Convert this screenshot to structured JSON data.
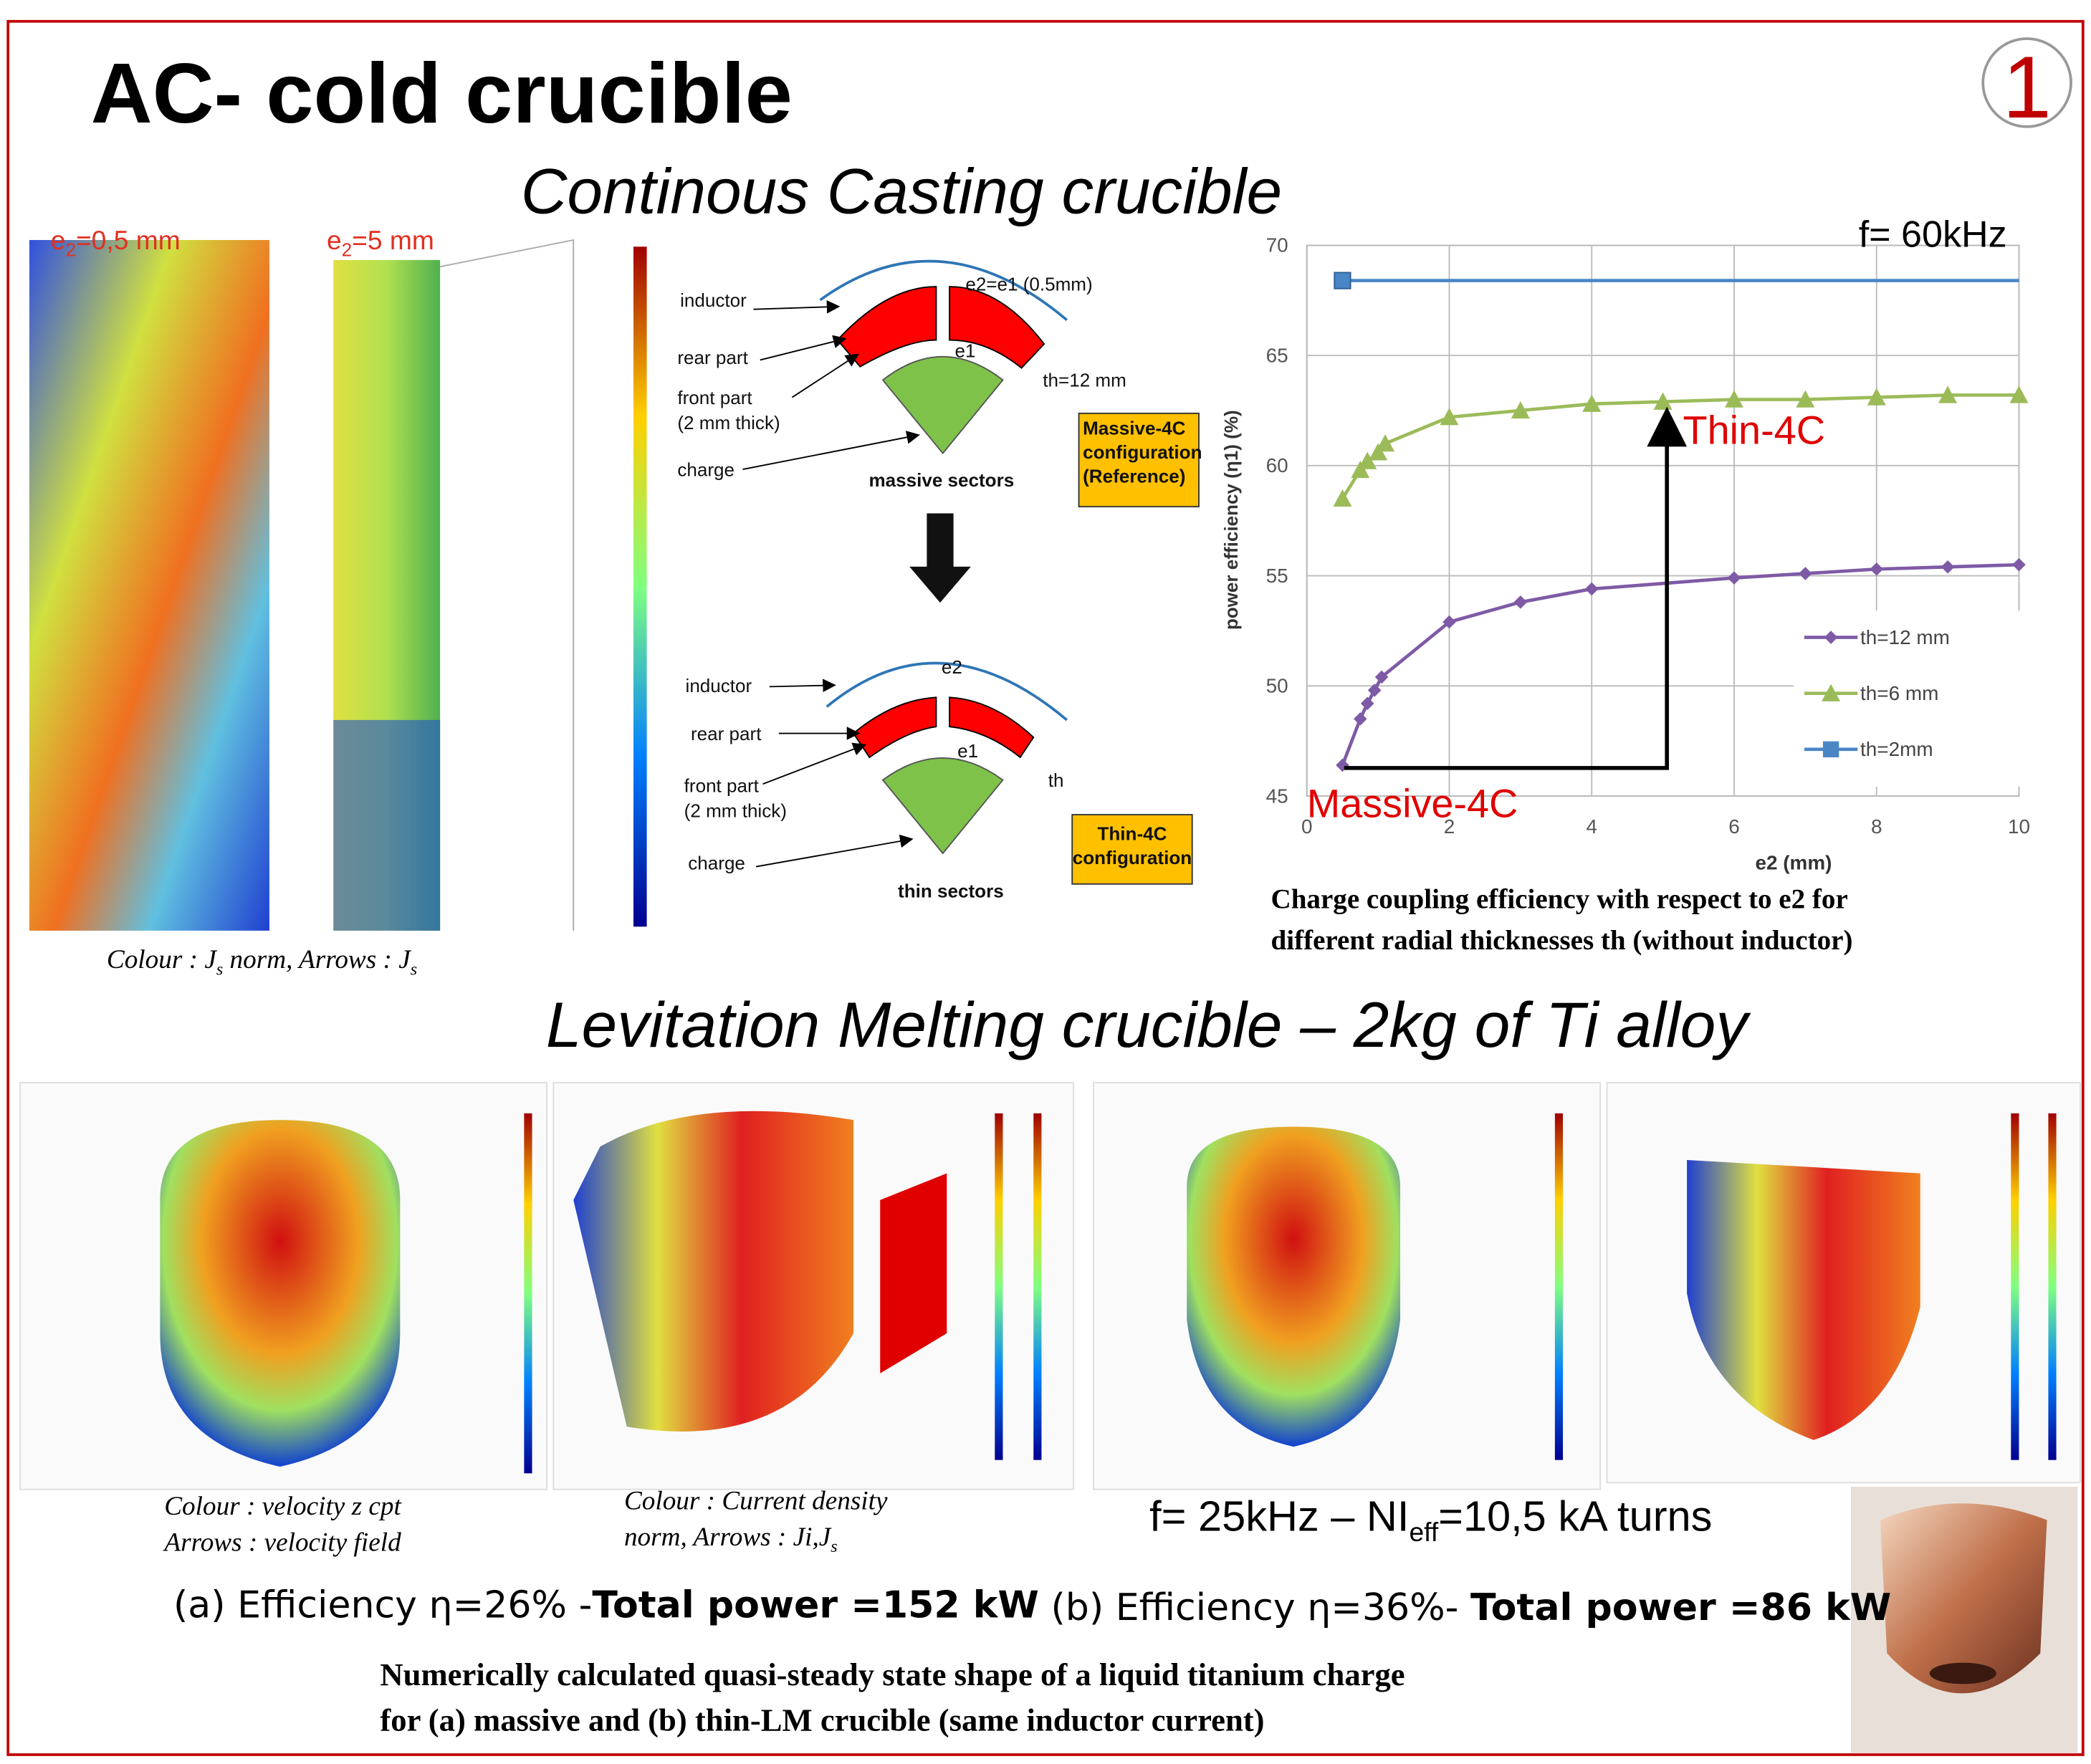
{
  "header": {
    "title": "AC- cold crucible",
    "badge": "1"
  },
  "casting": {
    "title": "Continous Casting crucible",
    "sim_labels": [
      [
        "e",
        "2",
        "=0,5 mm"
      ],
      [
        "e",
        "2",
        "=5 mm"
      ]
    ],
    "sim_caption": [
      "Colour : J",
      "s",
      " norm, Arrows : J",
      "s"
    ],
    "massive": {
      "inductor": "inductor",
      "rear": "rear part",
      "front": [
        "front part",
        "(2 mm thick)"
      ],
      "charge": "charge",
      "gap": "e2=e1 (0.5mm)",
      "e1": "e1",
      "th": "th=12 mm",
      "name": "massive sectors",
      "config": [
        "Massive-4C",
        "configuration",
        "(Reference)"
      ]
    },
    "thin": {
      "inductor": "inductor",
      "rear": "rear part",
      "front": [
        "front part",
        "(2 mm thick)"
      ],
      "charge": "charge",
      "gap": "e2",
      "e1": "e1",
      "th": "th",
      "name": "thin sectors",
      "config": [
        "Thin-4C",
        "configuration"
      ]
    }
  },
  "chart_data": {
    "type": "line",
    "subtitle": "f= 60kHz",
    "x_label": "e2 (mm)",
    "y_label": "power efficiency (η1) (%)",
    "xlim": [
      0,
      10
    ],
    "xticks": [
      0,
      2,
      4,
      6,
      8,
      10
    ],
    "ylim": [
      45,
      70
    ],
    "yticks": [
      45,
      50,
      55,
      60,
      65,
      70
    ],
    "grid": true,
    "legend": "lower-right",
    "series": [
      {
        "name": "th=12 mm",
        "color": "#7e5aa6",
        "marker": "diamond",
        "x": [
          0.5,
          0.75,
          0.85,
          0.95,
          1.05,
          2,
          3,
          4,
          6,
          7,
          8,
          9,
          10
        ],
        "values": [
          46.4,
          48.5,
          49.2,
          49.8,
          50.4,
          52.9,
          53.8,
          54.4,
          54.9,
          55.1,
          55.3,
          55.4,
          55.5
        ]
      },
      {
        "name": "th=6 mm",
        "color": "#9bbb59",
        "marker": "triangle",
        "x": [
          0.5,
          0.75,
          0.85,
          1,
          1.1,
          2,
          3,
          4,
          5,
          6,
          7,
          8,
          9,
          10
        ],
        "values": [
          58.5,
          59.8,
          60.2,
          60.6,
          61.0,
          62.2,
          62.5,
          62.8,
          62.9,
          63.0,
          63.0,
          63.1,
          63.2,
          63.2
        ]
      },
      {
        "name": "th=2mm",
        "color": "#4a86c5",
        "marker": "square",
        "x": [
          0.5,
          10
        ],
        "values": [
          68.4,
          68.4
        ]
      }
    ],
    "annotations": [
      "Thin-4C",
      "Massive-4C"
    ],
    "caption": [
      "Charge coupling efficiency with respect to e2 for",
      "different radial thicknesses th (without inductor)"
    ]
  },
  "levitation": {
    "title": "Levitation Melting crucible – 2kg of Ti alloy",
    "caption_a": [
      "Colour : velocity z cpt",
      "Arrows : velocity field"
    ],
    "caption_b": [
      "Colour : Current density",
      "norm, Arrows : Ji,J",
      "s"
    ],
    "frequency": [
      "f= 25kHz – NI",
      "eff",
      "=10,5 kA turns"
    ],
    "result_a": [
      "(a) Efficiency η=26% -",
      "Total power =152 kW"
    ],
    "result_b": [
      "(b) Efficiency η=36%- ",
      "Total power =86 kW"
    ],
    "caption": [
      "Numerically calculated quasi-steady state shape of a liquid titanium charge",
      "for (a) massive and (b) thin-LM crucible (same inductor current)"
    ]
  }
}
